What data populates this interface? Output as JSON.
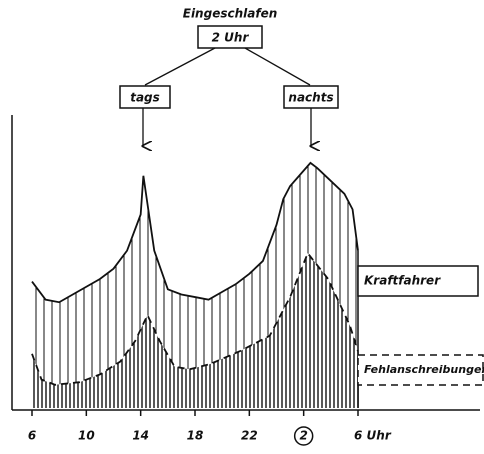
{
  "chart_data": {
    "type": "area",
    "annotations": [
      "Eingeschlafen",
      "2 Uhr",
      "tags",
      "nachts"
    ],
    "series": [
      {
        "name": "Kraftfahrer",
        "color": "#111111",
        "x": [
          6,
          7,
          8,
          9,
          10,
          11,
          12,
          13,
          14,
          14.2,
          15,
          16,
          17,
          18,
          19,
          20,
          21,
          22,
          23,
          24,
          24.5,
          25,
          26,
          26.5,
          27,
          28,
          29,
          29.6,
          30
        ],
        "values": [
          49,
          42,
          41,
          44,
          47,
          50,
          54,
          61,
          75,
          90,
          61,
          46,
          44,
          43,
          42,
          45,
          48,
          52,
          57,
          71,
          81,
          86,
          92,
          95,
          93,
          88,
          83,
          77,
          61
        ]
      },
      {
        "name": "Fehlanschreibungen",
        "color": "#111111",
        "x": [
          6,
          6.7,
          7.7,
          9.5,
          11,
          12.5,
          13.6,
          14.5,
          15.4,
          16.5,
          17.6,
          19.1,
          21.3,
          23.5,
          25,
          26.3,
          27.8,
          29.4,
          30
        ],
        "values": [
          21,
          11,
          9,
          10,
          13,
          18,
          26,
          36,
          26,
          16,
          15,
          17,
          22,
          28,
          43,
          60,
          50,
          32,
          22
        ]
      }
    ],
    "xlim": [
      6,
      30
    ],
    "xticks": [
      6,
      10,
      14,
      18,
      22,
      {
        "value": 26,
        "label": "2"
      },
      {
        "value": 30,
        "label": "6 Uhr"
      }
    ],
    "ylim": [
      0,
      100
    ]
  }
}
